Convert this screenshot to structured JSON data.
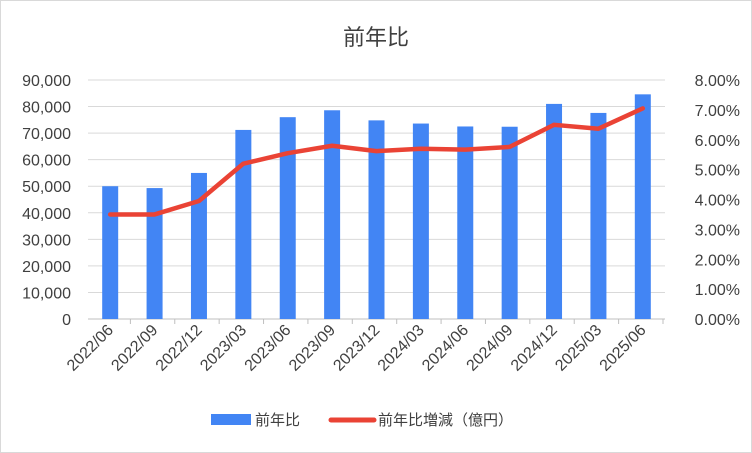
{
  "chart_data": {
    "type": "bar",
    "title": "前年比",
    "categories": [
      "2022/06",
      "2022/09",
      "2022/12",
      "2023/03",
      "2023/06",
      "2023/09",
      "2023/12",
      "2024/03",
      "2024/06",
      "2024/09",
      "2024/12",
      "2025/03",
      "2025/06"
    ],
    "series": [
      {
        "name": "前年比",
        "type": "bar",
        "axis": "left",
        "color": "#4285f4",
        "values": [
          50000,
          49300,
          55000,
          71200,
          76000,
          78600,
          74800,
          73600,
          72500,
          72400,
          81000,
          77600,
          84600
        ]
      },
      {
        "name": "前年比増減（億円）",
        "type": "line",
        "axis": "right",
        "color": "#ea4335",
        "values": [
          0.035,
          0.035,
          0.0395,
          0.052,
          0.0555,
          0.058,
          0.0562,
          0.057,
          0.0567,
          0.0576,
          0.065,
          0.0637,
          0.0705
        ]
      }
    ],
    "y_left": {
      "ylim": [
        0,
        90000
      ],
      "ticks": [
        "0",
        "10,000",
        "20,000",
        "30,000",
        "40,000",
        "50,000",
        "60,000",
        "70,000",
        "80,000",
        "90,000"
      ]
    },
    "y_right": {
      "ylim": [
        0,
        0.08
      ],
      "ticks": [
        "0.00%",
        "1.00%",
        "2.00%",
        "3.00%",
        "4.00%",
        "5.00%",
        "6.00%",
        "7.00%",
        "8.00%"
      ]
    },
    "grid": true,
    "legend_position": "bottom"
  }
}
